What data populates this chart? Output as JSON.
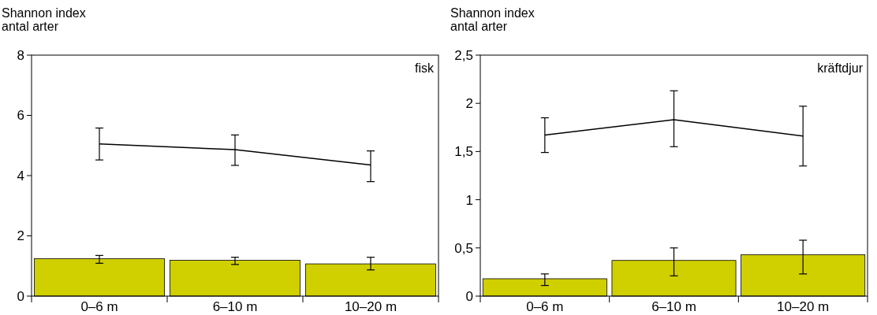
{
  "chart_data": [
    {
      "type": "bar",
      "title": "fisk",
      "ylabel": "Shannon index\nantal arter",
      "categories": [
        "0–6 m",
        "6–10 m",
        "10–20 m"
      ],
      "ylim": [
        0,
        8
      ],
      "yticks": [
        0,
        2,
        4,
        6,
        8
      ],
      "grid": false,
      "series": [
        {
          "color": "#d0cf00",
          "values": [
            1.24,
            1.19,
            1.07
          ],
          "errors": [
            [
              1.09,
              1.35
            ],
            [
              1.05,
              1.29
            ],
            [
              0.87,
              1.29
            ]
          ]
        },
        {
          "type": "line",
          "color": "#000000",
          "values": [
            5.05,
            4.86,
            4.35
          ],
          "errors": [
            [
              4.52,
              5.58
            ],
            [
              4.34,
              5.35
            ],
            [
              3.8,
              4.82
            ]
          ]
        }
      ]
    },
    {
      "type": "bar",
      "title": "kräftdjur",
      "ylabel": "Shannon index\nantal arter",
      "categories": [
        "0–6 m",
        "6–10 m",
        "10–20 m"
      ],
      "ylim": [
        0,
        2.5
      ],
      "yticks": [
        0,
        {
          "value": 0.5,
          "label": "0,5"
        },
        1,
        {
          "value": 1.5,
          "label": "1,5"
        },
        2,
        {
          "value": 2.5,
          "label": "2,5"
        }
      ],
      "grid": false,
      "series": [
        {
          "color": "#d0cf00",
          "values": [
            0.18,
            0.37,
            0.43
          ],
          "errors": [
            [
              0.11,
              0.23
            ],
            [
              0.21,
              0.5
            ],
            [
              0.23,
              0.58
            ]
          ]
        },
        {
          "type": "line",
          "color": "#000000",
          "values": [
            1.67,
            1.83,
            1.66
          ],
          "errors": [
            [
              1.49,
              1.85
            ],
            [
              1.55,
              2.13
            ],
            [
              1.35,
              1.97
            ]
          ]
        }
      ]
    }
  ]
}
